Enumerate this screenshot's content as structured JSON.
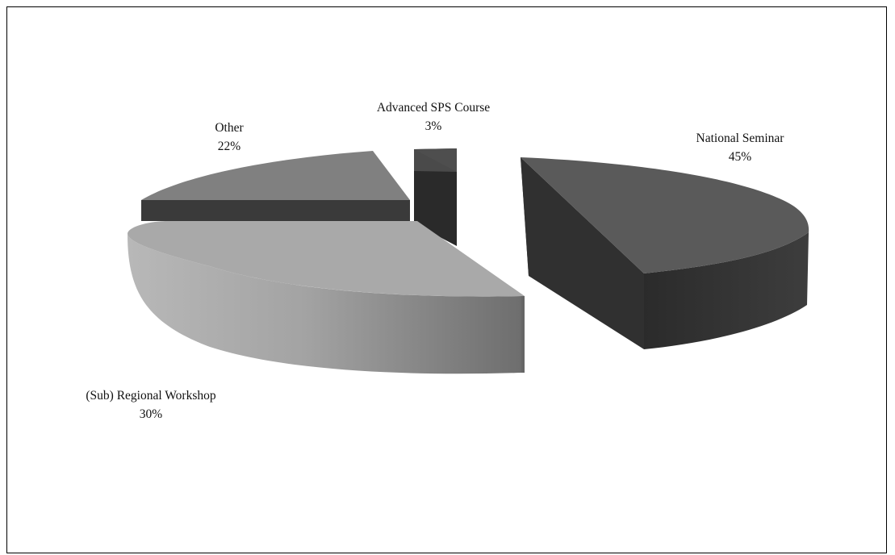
{
  "chart_data": {
    "type": "pie",
    "three_d": true,
    "exploded": true,
    "title": "",
    "legend": "none",
    "slices": [
      {
        "label": "National Seminar",
        "value": 45,
        "display": "45%",
        "color": "#5a5a5a",
        "side_color": "#303030"
      },
      {
        "label": "(Sub) Regional Workshop",
        "value": 30,
        "display": "30%",
        "color": "#a9a9a9",
        "side_color": "#8a8a8a"
      },
      {
        "label": "Other",
        "value": 22,
        "display": "22%",
        "color": "#808080",
        "side_color": "#3a3a3a"
      },
      {
        "label": "Advanced  SPS Course",
        "value": 3,
        "display": "3%",
        "color": "#4e4e4e",
        "side_color": "#2a2a2a"
      }
    ]
  }
}
